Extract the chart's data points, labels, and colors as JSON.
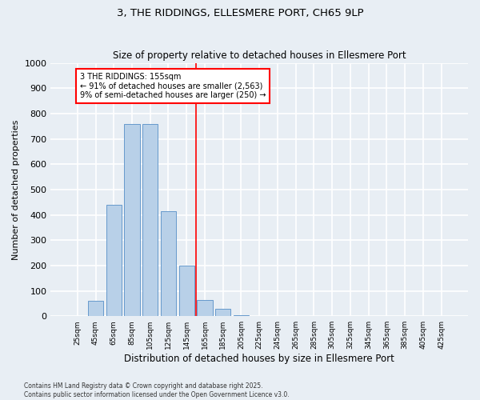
{
  "title": "3, THE RIDDINGS, ELLESMERE PORT, CH65 9LP",
  "subtitle": "Size of property relative to detached houses in Ellesmere Port",
  "xlabel": "Distribution of detached houses by size in Ellesmere Port",
  "ylabel": "Number of detached properties",
  "bar_color": "#b8d0e8",
  "bar_edgecolor": "#6699cc",
  "background_color": "#e8eef4",
  "grid_color": "#ffffff",
  "categories": [
    "25sqm",
    "45sqm",
    "65sqm",
    "85sqm",
    "105sqm",
    "125sqm",
    "145sqm",
    "165sqm",
    "185sqm",
    "205sqm",
    "225sqm",
    "245sqm",
    "265sqm",
    "285sqm",
    "305sqm",
    "325sqm",
    "345sqm",
    "365sqm",
    "385sqm",
    "405sqm",
    "425sqm"
  ],
  "values": [
    0,
    60,
    440,
    760,
    760,
    415,
    200,
    65,
    30,
    5,
    0,
    0,
    0,
    0,
    0,
    0,
    0,
    0,
    0,
    0,
    2
  ],
  "ylim": [
    0,
    1000
  ],
  "yticks": [
    0,
    100,
    200,
    300,
    400,
    500,
    600,
    700,
    800,
    900,
    1000
  ],
  "property_label": "3 THE RIDDINGS: 155sqm",
  "annotation_line1": "← 91% of detached houses are smaller (2,563)",
  "annotation_line2": "9% of semi-detached houses are larger (250) →",
  "red_line_bin_index": 7,
  "footer_line1": "Contains HM Land Registry data © Crown copyright and database right 2025.",
  "footer_line2": "Contains public sector information licensed under the Open Government Licence v3.0."
}
